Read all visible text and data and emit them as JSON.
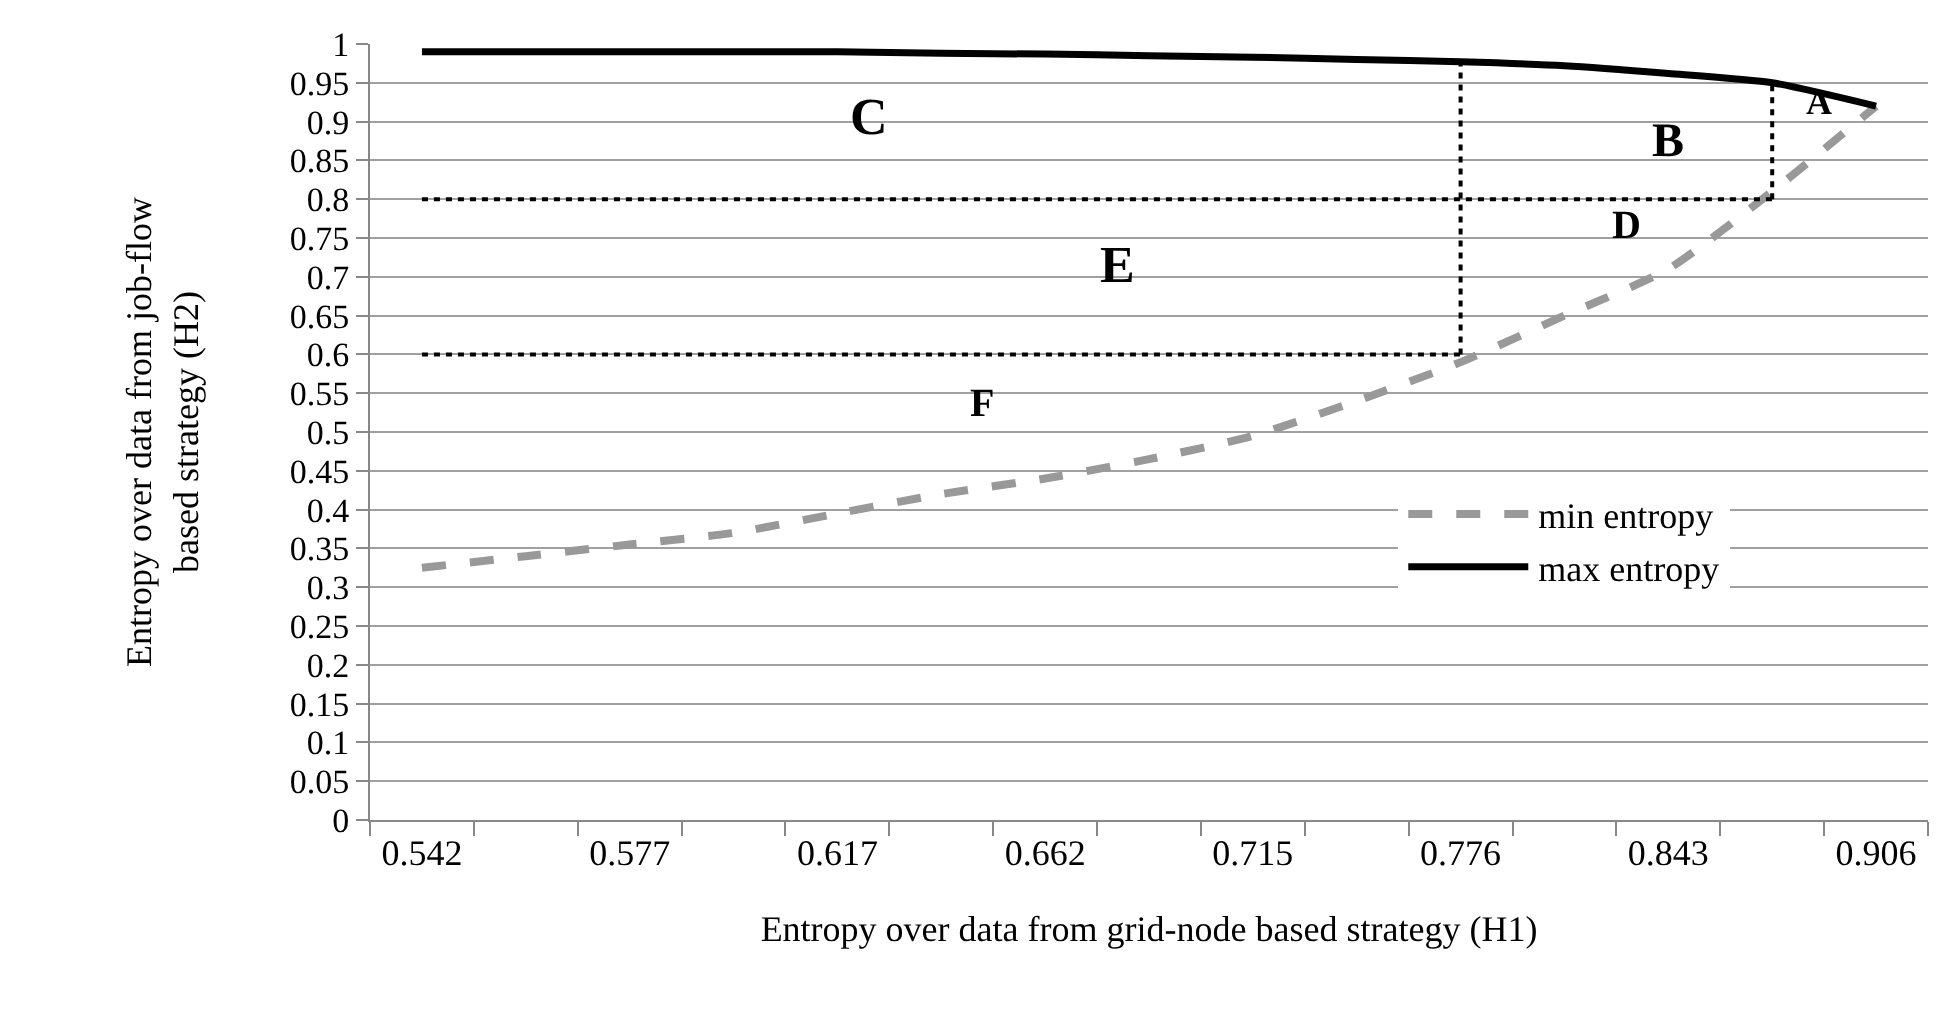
{
  "chart_data": {
    "type": "line",
    "xlabel": "Entropy over data from grid-node based strategy (H1)",
    "ylabel": "Entropy over data from job-flow\nbased strategy (H2)",
    "categories": [
      "0.542",
      null,
      "0.577",
      null,
      "0.617",
      null,
      "0.662",
      null,
      "0.715",
      null,
      "0.776",
      null,
      "0.843",
      null,
      "0.906"
    ],
    "series": [
      {
        "name": "min entropy",
        "color": "#999999",
        "line_style": "dashed",
        "values": [
          0.325,
          0.34,
          0.355,
          0.37,
          0.395,
          0.42,
          0.44,
          0.465,
          0.495,
          0.54,
          0.59,
          0.65,
          0.71,
          0.81,
          0.92
        ]
      },
      {
        "name": "max entropy",
        "color": "#000000",
        "line_style": "solid",
        "values": [
          0.99,
          0.99,
          0.99,
          0.99,
          0.99,
          0.988,
          0.987,
          0.985,
          0.983,
          0.98,
          0.977,
          0.972,
          0.962,
          0.95,
          0.92
        ]
      },
      {
        "color": "#000000",
        "line_style": "dotted",
        "values": [
          0.6,
          0.6,
          0.6,
          0.6,
          0.6,
          0.6,
          0.6,
          0.6,
          0.6,
          0.6,
          0.6,
          null,
          null,
          null,
          null
        ]
      },
      {
        "color": "#000000",
        "line_style": "dotted",
        "values": [
          0.8,
          0.8,
          0.8,
          0.8,
          0.8,
          0.8,
          0.8,
          0.8,
          0.8,
          0.8,
          0.8,
          0.8,
          0.8,
          0.8,
          null
        ]
      }
    ],
    "ylim": [
      0,
      1
    ],
    "yticks": [
      0,
      0.05,
      0.1,
      0.15,
      0.2,
      0.25,
      0.3,
      0.35,
      0.4,
      0.45,
      0.5,
      0.55,
      0.6,
      0.65,
      0.7,
      0.75,
      0.8,
      0.85,
      0.9,
      0.95,
      1
    ],
    "grid": "y",
    "legend": "right",
    "marker": "none",
    "ref_lines": [
      {
        "axis": "x",
        "value": "0.776",
        "color": "#000000",
        "line_style": "dotted"
      }
    ],
    "annotations": [
      "C",
      "B",
      {
        "text": "A",
        "y": 0.925
      },
      "D",
      "E",
      "F"
    ]
  }
}
